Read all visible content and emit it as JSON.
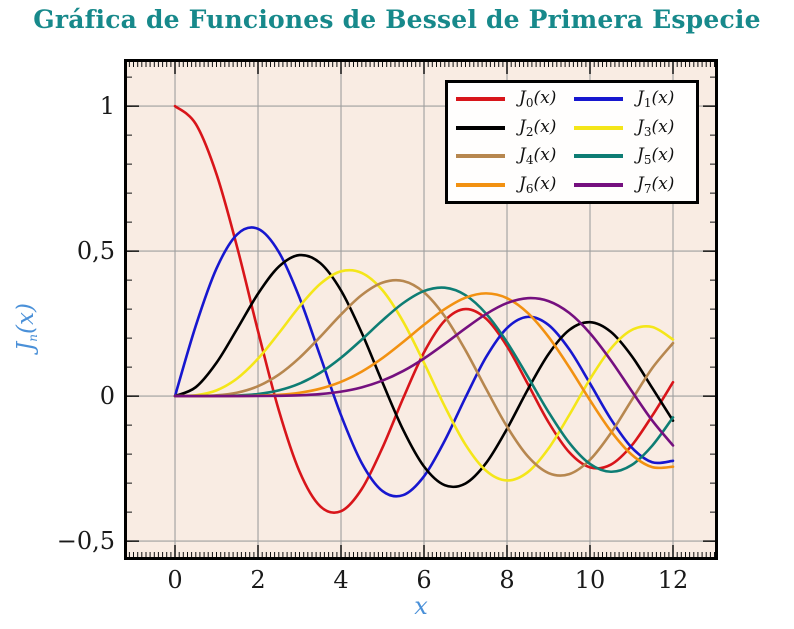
{
  "title": "Gráfica de Funciones de Bessel de Primera Especie",
  "colors": {
    "title": "#17898b",
    "axis_label": "#4a90d8",
    "plot_background": "#f9ece3",
    "grid": "#9f9f9f",
    "frame": "#000000",
    "tick": "#111111",
    "tick_label": "#1a1a1a"
  },
  "chart_data": {
    "type": "line",
    "title": "Gráfica de Funciones de Bessel de Primera Especie",
    "xlabel": "x",
    "ylabel": "J_n(x)",
    "ylabel_parts": {
      "base": "J",
      "sub": "n",
      "arg": "(x)"
    },
    "grid": true,
    "legend_position": "top-right",
    "decimal_style": "comma",
    "xlim": [
      -1.157,
      13.012
    ],
    "ylim": [
      -0.555,
      1.152
    ],
    "x_ticks": [
      0,
      2,
      4,
      6,
      8,
      10,
      12
    ],
    "x_tick_labels": [
      "0",
      "2",
      "4",
      "6",
      "8",
      "10",
      "12"
    ],
    "y_ticks": [
      1,
      0.5,
      0,
      -0.5
    ],
    "y_tick_labels": [
      "1",
      "0,5",
      "0",
      "−0,5"
    ],
    "minor_tick_step": 0.1,
    "x": [
      0,
      0.5,
      1,
      1.5,
      2,
      2.5,
      3,
      3.5,
      4,
      4.5,
      5,
      5.5,
      6,
      6.5,
      7,
      7.5,
      8,
      8.5,
      9,
      9.5,
      10,
      10.5,
      11,
      11.5,
      12
    ],
    "series": [
      {
        "name": "J_0(x)",
        "order": 0,
        "color": "#d8151a",
        "values": [
          1,
          0.9385,
          0.7652,
          0.5118,
          0.2239,
          -0.0484,
          -0.2601,
          -0.3801,
          -0.3971,
          -0.3205,
          -0.1776,
          -0.0068,
          0.1506,
          0.2601,
          0.3001,
          0.2663,
          0.1717,
          0.0419,
          -0.0903,
          -0.1939,
          -0.2459,
          -0.2366,
          -0.1712,
          -0.0677,
          0.0477
        ]
      },
      {
        "name": "J_1(x)",
        "order": 1,
        "color": "#1717cf",
        "values": [
          0,
          0.2423,
          0.4401,
          0.5579,
          0.5767,
          0.4971,
          0.3391,
          0.1374,
          -0.066,
          -0.2311,
          -0.3276,
          -0.3414,
          -0.2767,
          -0.1538,
          -0.0047,
          0.1352,
          0.2346,
          0.2731,
          0.2453,
          0.1613,
          0.0435,
          -0.0788,
          -0.1768,
          -0.2284,
          -0.2234
        ]
      },
      {
        "name": "J_2(x)",
        "order": 2,
        "color": "#000000",
        "values": [
          0,
          0.0306,
          0.1149,
          0.2321,
          0.3528,
          0.446,
          0.4861,
          0.4586,
          0.3641,
          0.2178,
          0.0466,
          -0.1173,
          -0.2429,
          -0.3074,
          -0.3014,
          -0.2303,
          -0.113,
          0.0223,
          0.1448,
          0.2279,
          0.2546,
          0.2216,
          0.139,
          0.0279,
          -0.0849
        ]
      },
      {
        "name": "J_3(x)",
        "order": 3,
        "color": "#f4e619",
        "values": [
          0,
          0.0026,
          0.0196,
          0.061,
          0.1289,
          0.2166,
          0.3091,
          0.3868,
          0.4302,
          0.4247,
          0.3648,
          0.2561,
          0.1148,
          -0.0353,
          -0.1676,
          -0.2581,
          -0.2911,
          -0.2626,
          -0.1809,
          -0.0653,
          0.0584,
          0.1633,
          0.2273,
          0.2381,
          0.1951
        ]
      },
      {
        "name": "J_4(x)",
        "order": 4,
        "color": "#b7874f",
        "values": [
          0,
          0.0002,
          0.0025,
          0.0118,
          0.034,
          0.0738,
          0.132,
          0.2044,
          0.2811,
          0.3484,
          0.3912,
          0.3967,
          0.3576,
          0.2748,
          0.1578,
          0.0238,
          -0.1054,
          -0.2077,
          -0.2655,
          -0.2691,
          -0.2196,
          -0.1283,
          -0.015,
          0.0963,
          0.1825
        ]
      },
      {
        "name": "J_5(x)",
        "order": 5,
        "color": "#0e7d74",
        "values": [
          0,
          0,
          0.0002,
          0.0018,
          0.007,
          0.0195,
          0.043,
          0.0804,
          0.1321,
          0.1947,
          0.2611,
          0.3209,
          0.3621,
          0.3736,
          0.3479,
          0.2835,
          0.1858,
          0.0671,
          -0.055,
          -0.1613,
          -0.2341,
          -0.261,
          -0.2383,
          -0.1711,
          -0.0735
        ]
      },
      {
        "name": "J_6(x)",
        "order": 6,
        "color": "#f29111",
        "values": [
          0,
          0,
          0,
          0.0002,
          0.0012,
          0.0042,
          0.0114,
          0.0254,
          0.0491,
          0.0844,
          0.131,
          0.1868,
          0.2458,
          0.2999,
          0.3392,
          0.3541,
          0.3376,
          0.2867,
          0.2043,
          0.0993,
          -0.0145,
          -0.1203,
          -0.2016,
          -0.2451,
          -0.2437
        ]
      },
      {
        "name": "J_7(x)",
        "order": 7,
        "color": "#75107f",
        "values": [
          0,
          0,
          0,
          0,
          0.0002,
          0.0008,
          0.0025,
          0.0068,
          0.0152,
          0.03,
          0.0534,
          0.0866,
          0.1296,
          0.1801,
          0.2336,
          0.2832,
          0.3206,
          0.3376,
          0.3275,
          0.2868,
          0.2167,
          0.1236,
          0.0184,
          -0.0846,
          -0.1703
        ]
      }
    ]
  }
}
